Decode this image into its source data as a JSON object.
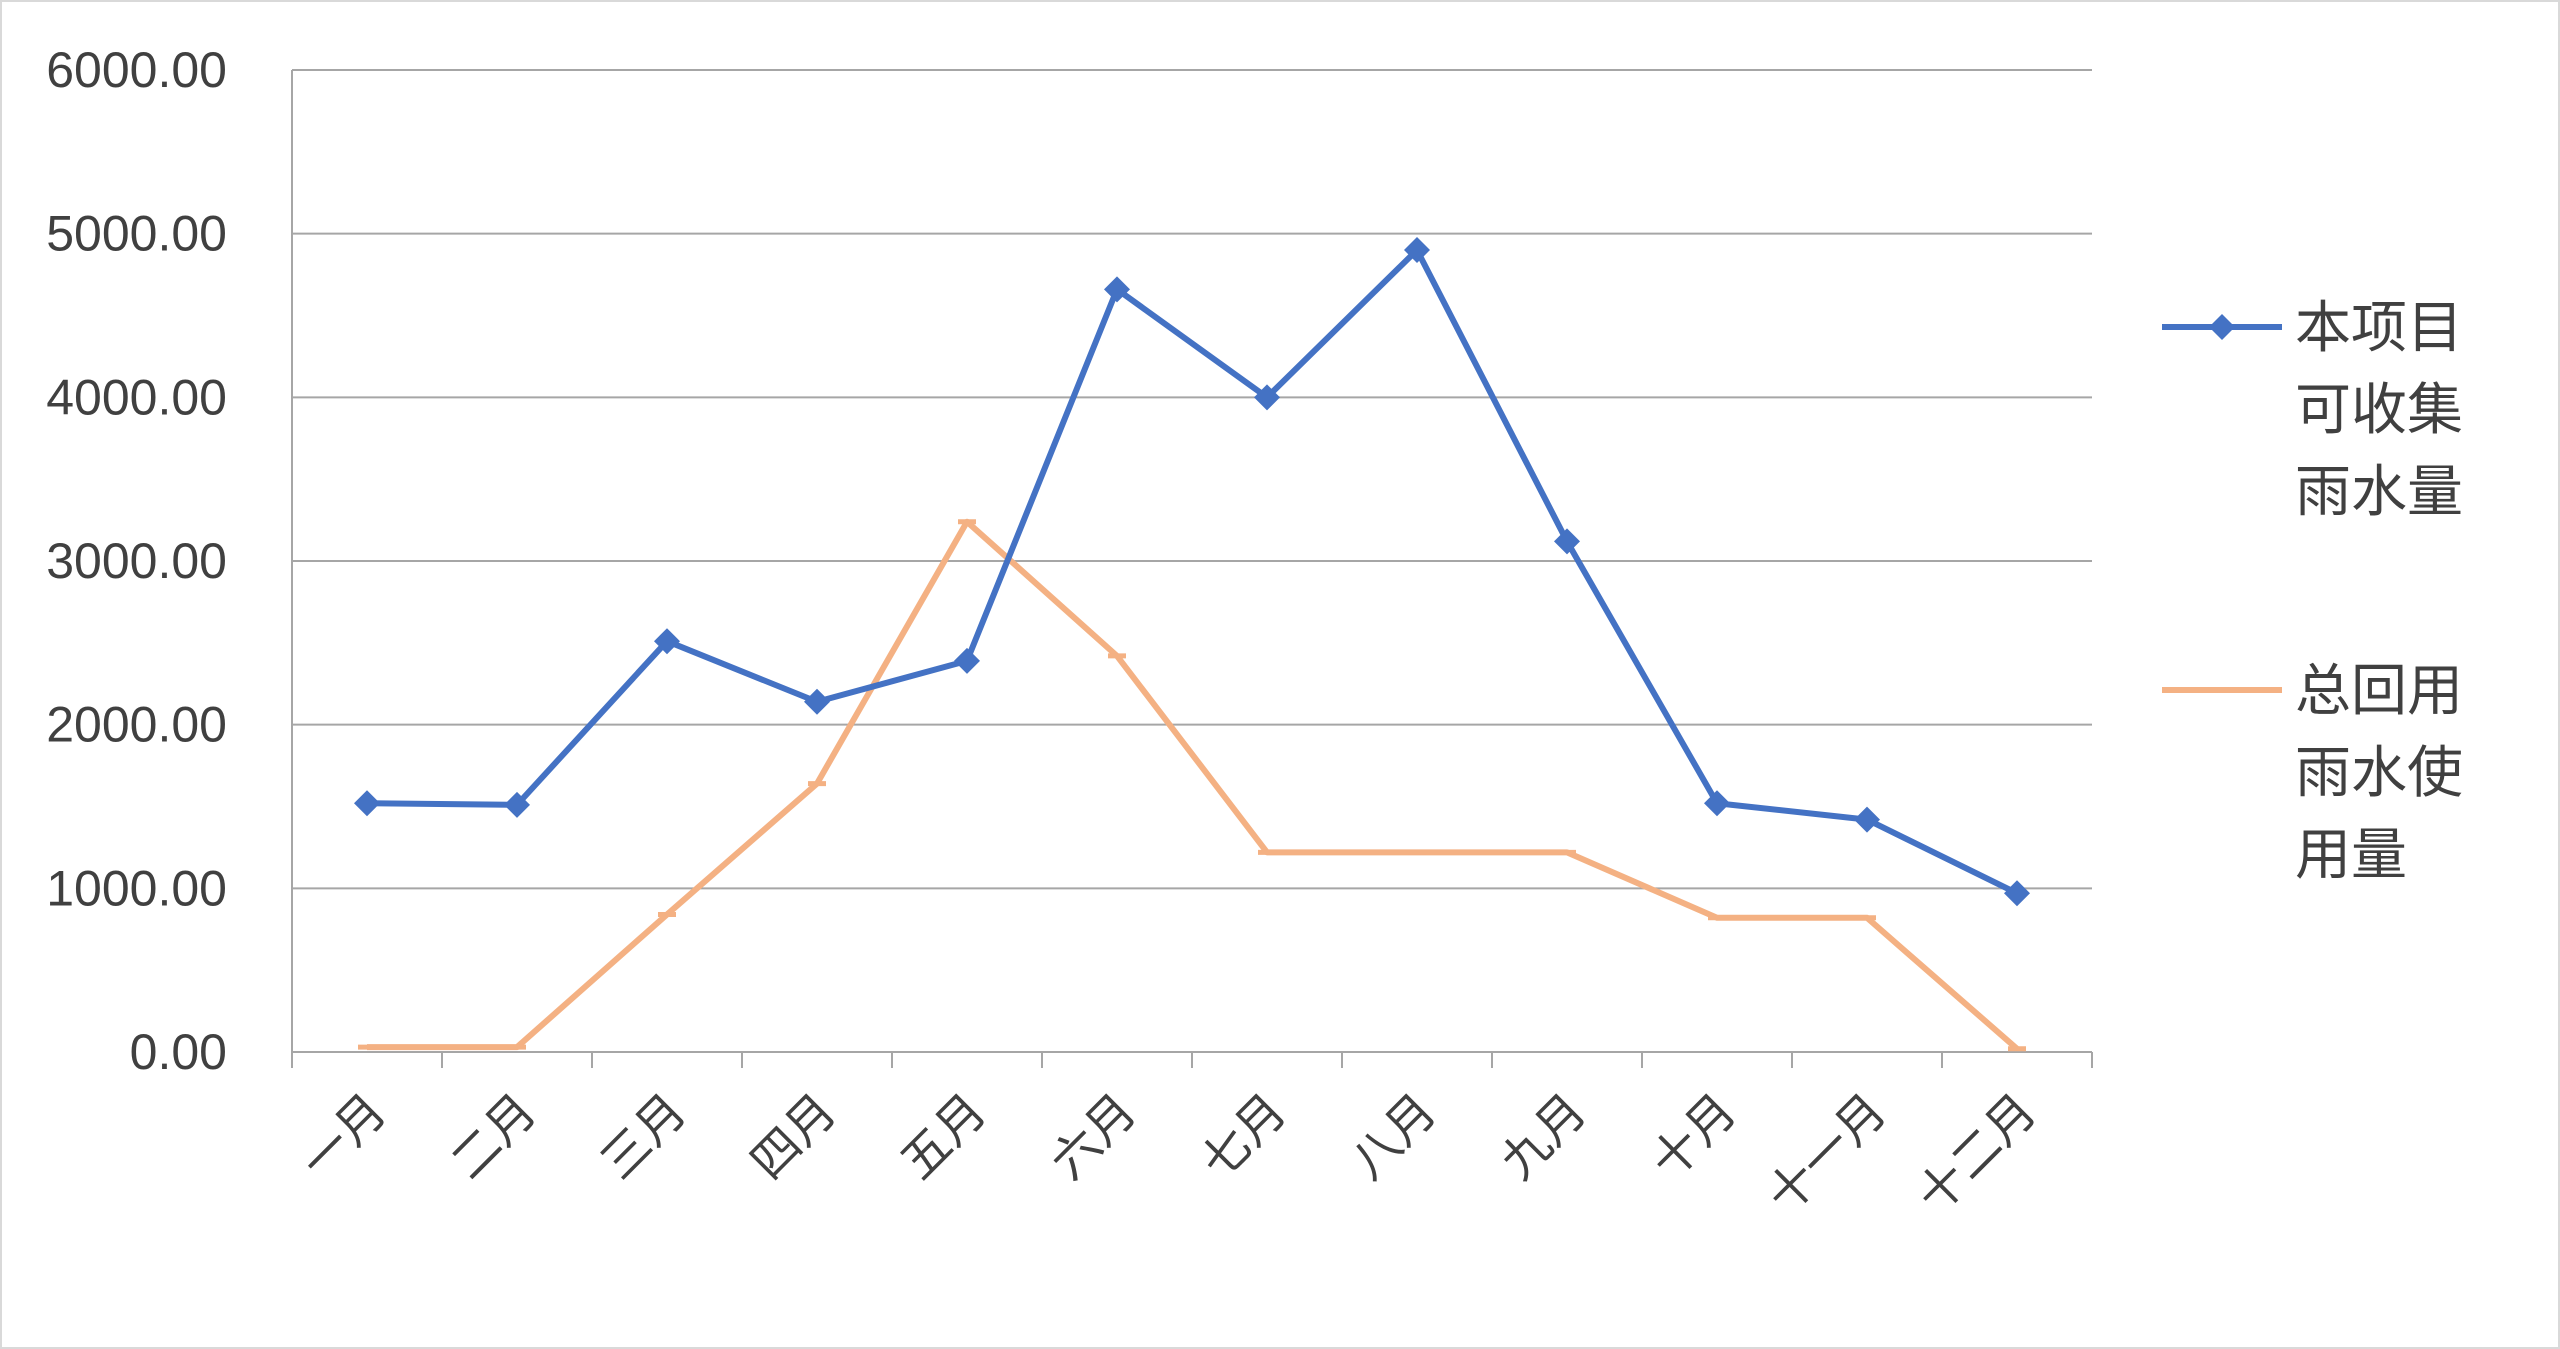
{
  "chart_data": {
    "type": "line",
    "title": "",
    "xlabel": "",
    "ylabel": "",
    "categories": [
      "一月",
      "二月",
      "三月",
      "四月",
      "五月",
      "六月",
      "七月",
      "八月",
      "九月",
      "十月",
      "十一月",
      "十二月"
    ],
    "ylim": [
      0,
      6000
    ],
    "yticks": [
      "0.00",
      "1000.00",
      "2000.00",
      "3000.00",
      "4000.00",
      "5000.00",
      "6000.00"
    ],
    "grid": true,
    "legend_position": "right",
    "series": [
      {
        "name": "本项目可收集雨水量",
        "legend_lines": [
          "本项目",
          "可收集",
          "雨水量"
        ],
        "color": "#4472c4",
        "marker": "diamond",
        "values": [
          1520,
          1510,
          2510,
          2140,
          2390,
          4660,
          4000,
          4900,
          3120,
          1520,
          1420,
          970
        ]
      },
      {
        "name": "总回用雨水使用量",
        "legend_lines": [
          "总回用",
          "雨水使",
          "用量"
        ],
        "color": "#f4b183",
        "marker": "dash",
        "values": [
          30,
          30,
          840,
          1640,
          3240,
          2420,
          1220,
          1220,
          1220,
          820,
          820,
          20
        ]
      }
    ]
  }
}
